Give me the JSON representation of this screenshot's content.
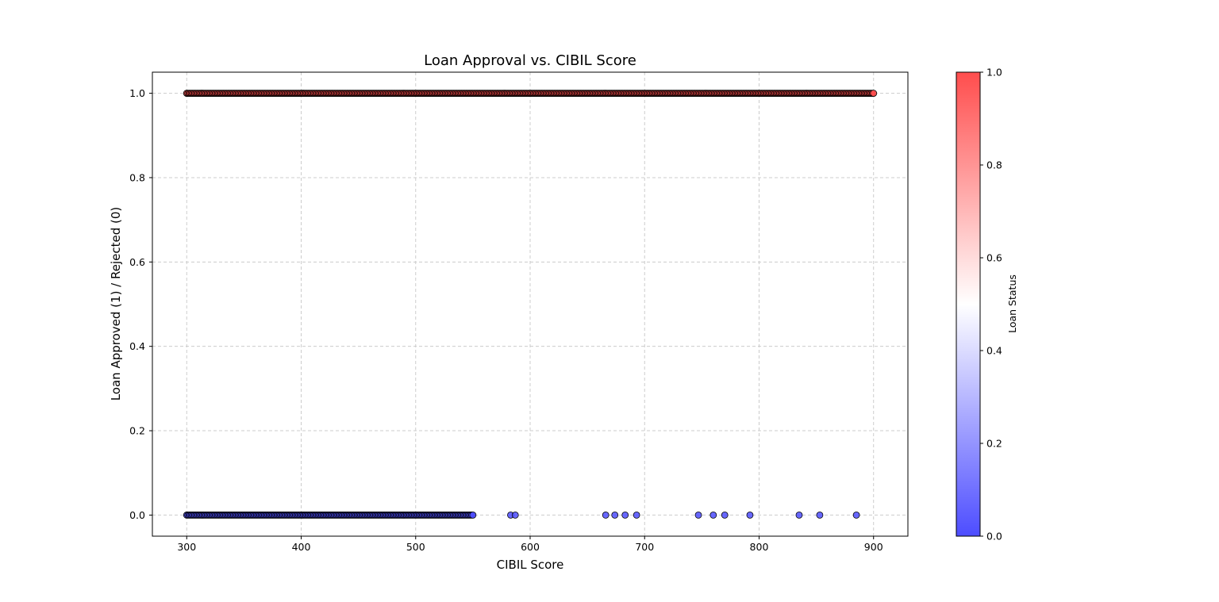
{
  "chart_data": {
    "type": "scatter",
    "title": "Loan Approval vs. CIBIL Score",
    "xlabel": "CIBIL Score",
    "ylabel": "Loan Approved (1) / Rejected (0)",
    "xlim": [
      270,
      930
    ],
    "ylim": [
      -0.05,
      1.05
    ],
    "xticks": [
      300,
      400,
      500,
      600,
      700,
      800,
      900
    ],
    "yticks": [
      0.0,
      0.2,
      0.4,
      0.6,
      0.8,
      1.0
    ],
    "grid": true,
    "colors": {
      "rejected": "#4d4dff",
      "approved": "#ff4d4d",
      "edge": "#000000"
    },
    "series": [
      {
        "y": 0,
        "ranges": [
          [
            300,
            550
          ]
        ],
        "extra_x": [
          583,
          587,
          666,
          674,
          683,
          693,
          747,
          760,
          770,
          792,
          835,
          853,
          885
        ]
      },
      {
        "y": 1,
        "ranges": [
          [
            300,
            900
          ]
        ],
        "extra_x": []
      }
    ],
    "colorbar": {
      "label": "Loan Status",
      "range": [
        0.0,
        1.0
      ],
      "ticks": [
        0.0,
        0.2,
        0.4,
        0.6,
        0.8,
        1.0
      ],
      "colormap": [
        "#4d4dff",
        "#ffffff",
        "#ff4d4d"
      ]
    }
  }
}
